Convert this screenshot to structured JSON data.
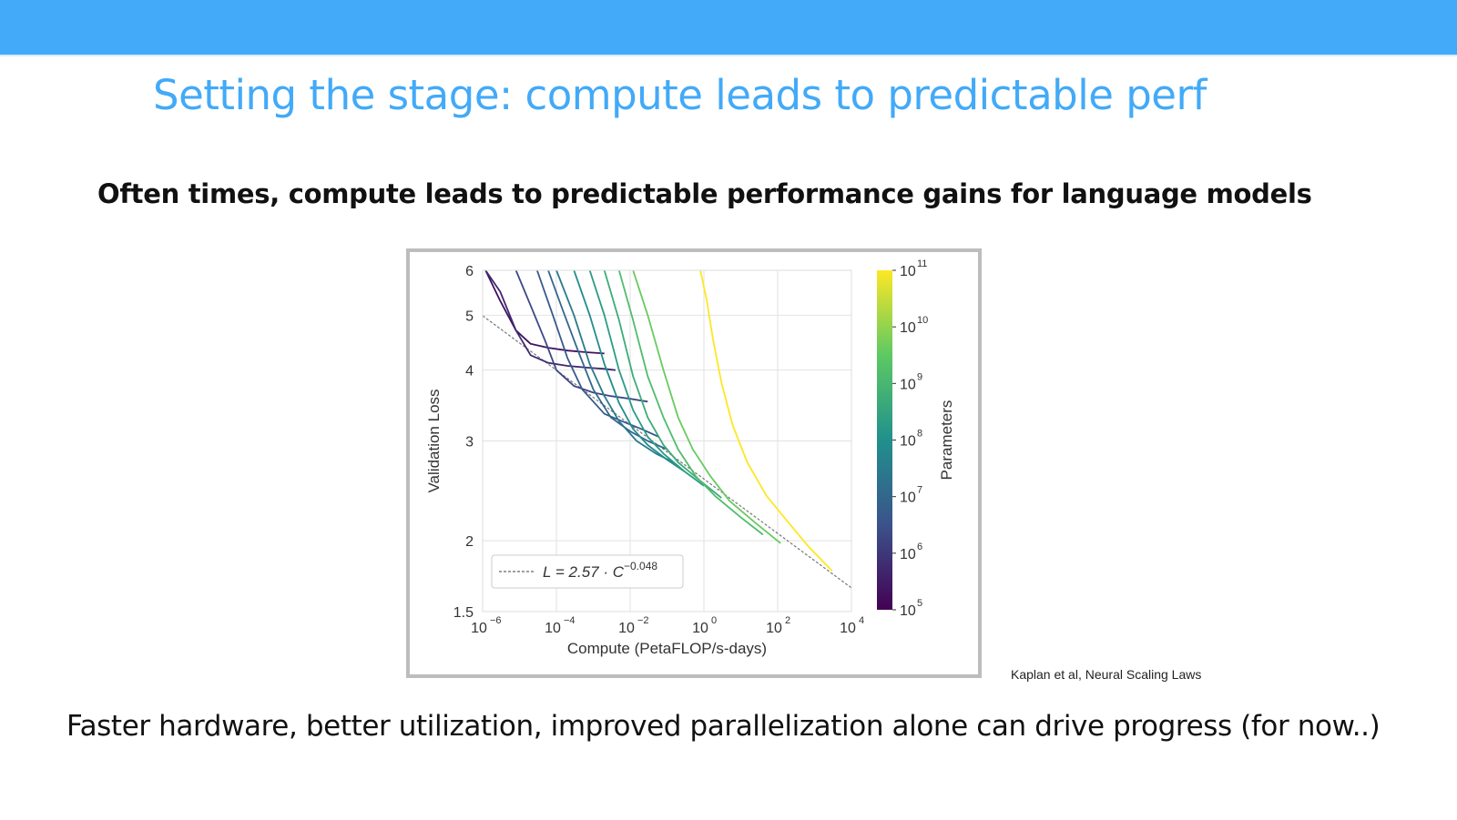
{
  "slide": {
    "title": "Setting the stage: compute leads to predictable perf",
    "subtitle": "Often times, compute leads to predictable performance gains  for language models",
    "citation": "Kaplan et al, Neural Scaling Laws",
    "footer": "Faster hardware, better utilization, improved parallelization alone can drive progress (for now..)"
  },
  "colors": {
    "accent": "#42aaf8",
    "colormap": [
      "#440154",
      "#3b528b",
      "#21908c",
      "#5dc963",
      "#fde725"
    ]
  },
  "chart_data": {
    "type": "line",
    "xlabel": "Compute (PetaFLOP/s-days)",
    "ylabel": "Validation Loss",
    "x_scale": "log",
    "y_scale": "log",
    "xlim": [
      1e-06,
      10000
    ],
    "ylim": [
      1.5,
      6
    ],
    "x_ticks": [
      {
        "base": "10",
        "exp": "−6",
        "value": 1e-06
      },
      {
        "base": "10",
        "exp": "−4",
        "value": 0.0001
      },
      {
        "base": "10",
        "exp": "−2",
        "value": 0.01
      },
      {
        "base": "10",
        "exp": "0",
        "value": 1
      },
      {
        "base": "10",
        "exp": "2",
        "value": 100
      },
      {
        "base": "10",
        "exp": "4",
        "value": 10000
      }
    ],
    "y_ticks": [
      {
        "label": "1.5",
        "value": 1.5
      },
      {
        "label": "2",
        "value": 2
      },
      {
        "label": "3",
        "value": 3
      },
      {
        "label": "4",
        "value": 4
      },
      {
        "label": "5",
        "value": 5
      },
      {
        "label": "6",
        "value": 6
      }
    ],
    "grid": true,
    "legend": {
      "position": "bottom-left",
      "entry_prefix": "L = 2.57 · C",
      "entry_exponent": "−0.048"
    },
    "fit_line": {
      "coef": 2.57,
      "exponent": -0.048
    },
    "colorbar": {
      "label": "Parameters",
      "ticks": [
        {
          "base": "10",
          "exp": "5",
          "value": 100000
        },
        {
          "base": "10",
          "exp": "6",
          "value": 1000000
        },
        {
          "base": "10",
          "exp": "7",
          "value": 10000000
        },
        {
          "base": "10",
          "exp": "8",
          "value": 100000000
        },
        {
          "base": "10",
          "exp": "9",
          "value": 1000000000
        },
        {
          "base": "10",
          "exp": "10",
          "value": 10000000000
        },
        {
          "base": "10",
          "exp": "11",
          "value": 100000000000
        }
      ],
      "range": [
        100000,
        100000000000
      ]
    },
    "series": [
      {
        "params": 200000,
        "x": [
          1.2e-06,
          3e-06,
          8e-06,
          2e-05,
          6e-05,
          0.0002,
          0.0007,
          0.002
        ],
        "y": [
          6.0,
          5.3,
          4.7,
          4.45,
          4.38,
          4.33,
          4.3,
          4.28
        ]
      },
      {
        "params": 600000,
        "x": [
          1.2e-06,
          3e-06,
          8e-06,
          2e-05,
          6e-05,
          0.0002,
          0.0007,
          0.002,
          0.004
        ],
        "y": [
          6.0,
          5.5,
          4.7,
          4.25,
          4.12,
          4.07,
          4.04,
          4.02,
          4.0
        ]
      },
      {
        "params": 2000000,
        "x": [
          8e-06,
          2e-05,
          5e-05,
          0.0001,
          0.0003,
          0.001,
          0.003,
          0.01,
          0.03
        ],
        "y": [
          6.0,
          5.2,
          4.5,
          4.0,
          3.75,
          3.65,
          3.6,
          3.56,
          3.52
        ]
      },
      {
        "params": 5000000,
        "x": [
          3e-05,
          8e-05,
          0.0002,
          0.0005,
          0.002,
          0.006,
          0.02,
          0.06
        ],
        "y": [
          6.0,
          5.0,
          4.2,
          3.7,
          3.35,
          3.25,
          3.15,
          3.05
        ]
      },
      {
        "params": 10000000,
        "x": [
          6e-05,
          0.00015,
          0.0004,
          0.001,
          0.003,
          0.01,
          0.03,
          0.1
        ],
        "y": [
          6.0,
          5.1,
          4.3,
          3.7,
          3.3,
          3.12,
          3.0,
          2.9
        ]
      },
      {
        "params": 30000000,
        "x": [
          0.0001,
          0.0003,
          0.0008,
          0.002,
          0.005,
          0.015,
          0.05,
          0.15
        ],
        "y": [
          6.0,
          5.0,
          4.1,
          3.6,
          3.25,
          3.0,
          2.85,
          2.75
        ]
      },
      {
        "params": 80000000,
        "x": [
          0.0003,
          0.0008,
          0.002,
          0.005,
          0.012,
          0.03,
          0.1,
          0.3
        ],
        "y": [
          6.0,
          5.0,
          4.1,
          3.5,
          3.15,
          2.95,
          2.78,
          2.65
        ]
      },
      {
        "params": 200000000,
        "x": [
          0.0008,
          0.002,
          0.005,
          0.012,
          0.03,
          0.08,
          0.3,
          1
        ],
        "y": [
          6.0,
          5.0,
          4.0,
          3.4,
          3.05,
          2.85,
          2.65,
          2.5
        ]
      },
      {
        "params": 500000000,
        "x": [
          0.002,
          0.005,
          0.012,
          0.03,
          0.08,
          0.2,
          0.8,
          3
        ],
        "y": [
          6.0,
          4.9,
          3.9,
          3.3,
          2.95,
          2.75,
          2.55,
          2.38
        ]
      },
      {
        "params": 1500000000,
        "x": [
          0.005,
          0.012,
          0.03,
          0.08,
          0.2,
          0.6,
          2,
          10,
          40
        ],
        "y": [
          6.0,
          4.9,
          3.9,
          3.3,
          2.9,
          2.6,
          2.4,
          2.2,
          2.05
        ]
      },
      {
        "params": 4000000000,
        "x": [
          0.012,
          0.03,
          0.08,
          0.2,
          0.5,
          1.5,
          5,
          25,
          120
        ],
        "y": [
          6.0,
          5.0,
          4.0,
          3.3,
          2.9,
          2.6,
          2.35,
          2.15,
          1.98
        ]
      },
      {
        "params": 100000000000,
        "x": [
          0.8,
          1.2,
          1.8,
          3,
          6,
          15,
          50,
          200,
          700,
          3000
        ],
        "y": [
          6.0,
          5.3,
          4.5,
          3.8,
          3.2,
          2.75,
          2.4,
          2.15,
          1.95,
          1.77
        ]
      }
    ]
  }
}
